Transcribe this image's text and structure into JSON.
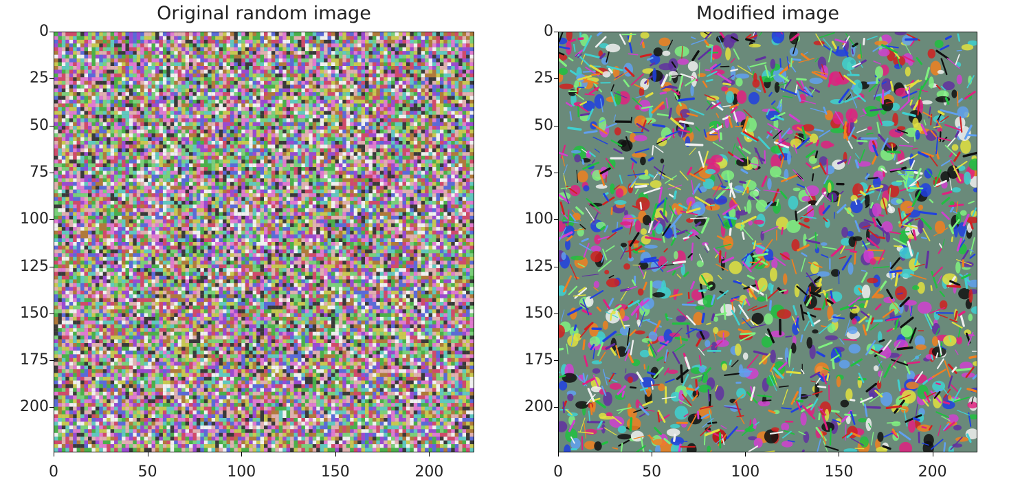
{
  "chart_data": [
    {
      "type": "heatmap",
      "title": "Original random image",
      "xlabel": "",
      "ylabel": "",
      "xlim": [
        0,
        224
      ],
      "ylim": [
        224,
        0
      ],
      "xticks": [
        "0",
        "50",
        "100",
        "150",
        "200"
      ],
      "yticks": [
        "0",
        "25",
        "50",
        "75",
        "100",
        "125",
        "150",
        "175",
        "200"
      ],
      "xtick_values": [
        0,
        50,
        100,
        150,
        200
      ],
      "ytick_values": [
        0,
        25,
        50,
        75,
        100,
        125,
        150,
        175,
        200
      ],
      "content": "random RGB noise",
      "grid": false
    },
    {
      "type": "heatmap",
      "title": "Modified image",
      "xlabel": "",
      "ylabel": "",
      "xlim": [
        0,
        224
      ],
      "ylim": [
        224,
        0
      ],
      "xticks": [
        "0",
        "50",
        "100",
        "150",
        "200"
      ],
      "yticks": [
        "0",
        "25",
        "50",
        "75",
        "100",
        "125",
        "150",
        "175",
        "200"
      ],
      "xtick_values": [
        0,
        50,
        100,
        150,
        200
      ],
      "ytick_values": [
        0,
        25,
        50,
        75,
        100,
        125,
        150,
        175,
        200
      ],
      "content": "colorful feather-like texture pattern",
      "grid": false
    }
  ]
}
